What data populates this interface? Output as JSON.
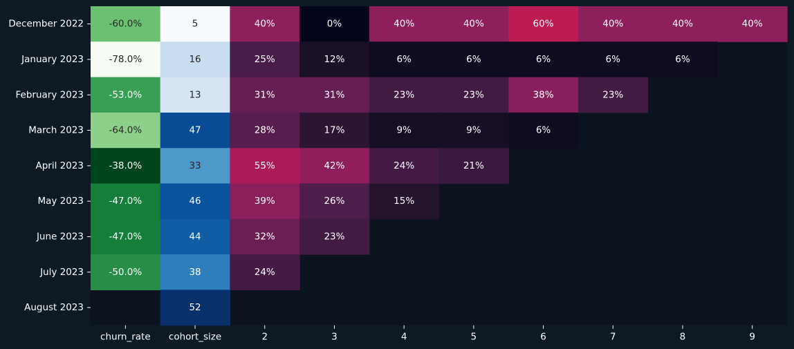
{
  "chart_data": {
    "type": "heatmap",
    "title": "",
    "xlabel": "",
    "ylabel": "",
    "rows": [
      "December 2022",
      "January 2023",
      "February 2023",
      "March 2023",
      "April 2023",
      "May 2023",
      "June 2023",
      "July 2023",
      "August 2023"
    ],
    "columns": [
      "churn_rate",
      "cohort_size",
      "2",
      "3",
      "4",
      "5",
      "6",
      "7",
      "8",
      "9"
    ],
    "churn_rate": [
      -60.0,
      -78.0,
      -53.0,
      -64.0,
      -38.0,
      -47.0,
      -47.0,
      -50.0,
      null
    ],
    "churn_rate_labels": [
      "-60.0%",
      "-78.0%",
      "-53.0%",
      "-64.0%",
      "-38.0%",
      "-47.0%",
      "-47.0%",
      "-50.0%",
      ""
    ],
    "cohort_size": [
      5,
      16,
      13,
      47,
      33,
      46,
      44,
      38,
      52
    ],
    "cohort_size_labels": [
      "5",
      "16",
      "13",
      "47",
      "33",
      "46",
      "44",
      "38",
      "52"
    ],
    "retention": [
      [
        40,
        0,
        40,
        40,
        60,
        40,
        40,
        40
      ],
      [
        25,
        12,
        6,
        6,
        6,
        6,
        6,
        null
      ],
      [
        31,
        31,
        23,
        23,
        38,
        23,
        null,
        null
      ],
      [
        28,
        17,
        9,
        9,
        6,
        null,
        null,
        null
      ],
      [
        55,
        42,
        24,
        21,
        null,
        null,
        null,
        null
      ],
      [
        39,
        26,
        15,
        null,
        null,
        null,
        null,
        null
      ],
      [
        32,
        23,
        null,
        null,
        null,
        null,
        null,
        null
      ],
      [
        24,
        null,
        null,
        null,
        null,
        null,
        null,
        null
      ],
      [
        null,
        null,
        null,
        null,
        null,
        null,
        null,
        null
      ]
    ],
    "retention_labels": [
      [
        "40%",
        "0%",
        "40%",
        "40%",
        "60%",
        "40%",
        "40%",
        "40%"
      ],
      [
        "25%",
        "12%",
        "6%",
        "6%",
        "6%",
        "6%",
        "6%",
        ""
      ],
      [
        "31%",
        "31%",
        "23%",
        "23%",
        "38%",
        "23%",
        "",
        ""
      ],
      [
        "28%",
        "17%",
        "9%",
        "9%",
        "6%",
        "",
        "",
        ""
      ],
      [
        "55%",
        "42%",
        "24%",
        "21%",
        "",
        "",
        "",
        ""
      ],
      [
        "39%",
        "26%",
        "15%",
        "",
        "",
        "",
        "",
        ""
      ],
      [
        "32%",
        "23%",
        "",
        "",
        "",
        "",
        "",
        ""
      ],
      [
        "24%",
        "",
        "",
        "",
        "",
        "",
        "",
        ""
      ],
      [
        "",
        "",
        "",
        "",
        "",
        "",
        "",
        ""
      ]
    ],
    "colors": {
      "page_background": "#0d1923",
      "plot_background": "#0b141e",
      "tick_text": "#ffffff",
      "churn_colormap": "Greens",
      "cohort_colormap": "Blues",
      "retention_colormap": "rocket"
    }
  }
}
